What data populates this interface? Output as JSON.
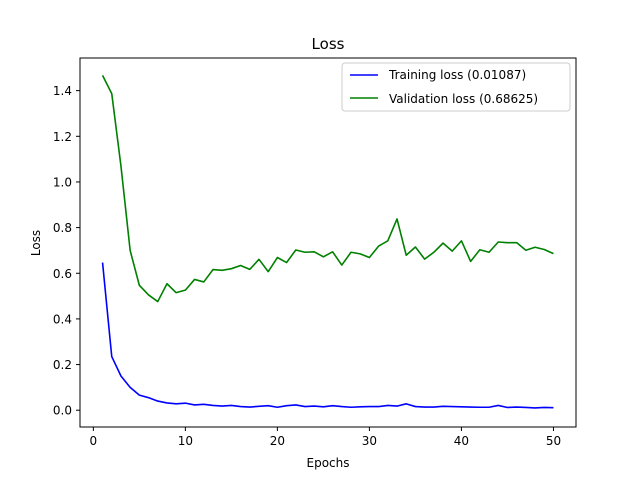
{
  "chart_data": {
    "type": "line",
    "title": "Loss",
    "xlabel": "Epochs",
    "ylabel": "Loss",
    "xlim": [
      -1.45,
      52.45
    ],
    "ylim": [
      -0.0735,
      1.543
    ],
    "xticks": [
      0,
      10,
      20,
      30,
      40,
      50
    ],
    "yticks": [
      0.0,
      0.2,
      0.4,
      0.6,
      0.8,
      1.0,
      1.2,
      1.4
    ],
    "xtick_labels": [
      "0",
      "10",
      "20",
      "30",
      "40",
      "50"
    ],
    "ytick_labels": [
      "0.0",
      "0.2",
      "0.4",
      "0.6",
      "0.8",
      "1.0",
      "1.2",
      "1.4"
    ],
    "grid": false,
    "legend_position": "upper-right",
    "x": [
      1,
      2,
      3,
      4,
      5,
      6,
      7,
      8,
      9,
      10,
      11,
      12,
      13,
      14,
      15,
      16,
      17,
      18,
      19,
      20,
      21,
      22,
      23,
      24,
      25,
      26,
      27,
      28,
      29,
      30,
      31,
      32,
      33,
      34,
      35,
      36,
      37,
      38,
      39,
      40,
      41,
      42,
      43,
      44,
      45,
      46,
      47,
      48,
      49,
      50
    ],
    "series": [
      {
        "name": "Training loss (0.01087)",
        "color": "#0000ff",
        "values": [
          0.647,
          0.235,
          0.15,
          0.1,
          0.066,
          0.055,
          0.04,
          0.032,
          0.028,
          0.031,
          0.023,
          0.026,
          0.021,
          0.018,
          0.021,
          0.016,
          0.014,
          0.017,
          0.02,
          0.013,
          0.02,
          0.023,
          0.016,
          0.018,
          0.015,
          0.02,
          0.016,
          0.013,
          0.015,
          0.016,
          0.016,
          0.021,
          0.018,
          0.028,
          0.016,
          0.014,
          0.014,
          0.017,
          0.016,
          0.015,
          0.014,
          0.013,
          0.013,
          0.021,
          0.012,
          0.014,
          0.012,
          0.01,
          0.012,
          0.011
        ]
      },
      {
        "name": "Validation loss (0.68625)",
        "color": "#008000",
        "values": [
          1.467,
          1.387,
          1.07,
          0.7,
          0.547,
          0.505,
          0.476,
          0.554,
          0.515,
          0.526,
          0.573,
          0.562,
          0.616,
          0.613,
          0.62,
          0.634,
          0.617,
          0.661,
          0.607,
          0.669,
          0.647,
          0.702,
          0.692,
          0.694,
          0.672,
          0.694,
          0.636,
          0.692,
          0.685,
          0.669,
          0.719,
          0.742,
          0.838,
          0.679,
          0.715,
          0.662,
          0.692,
          0.732,
          0.697,
          0.742,
          0.652,
          0.703,
          0.692,
          0.737,
          0.734,
          0.734,
          0.701,
          0.714,
          0.704,
          0.686
        ]
      }
    ]
  }
}
